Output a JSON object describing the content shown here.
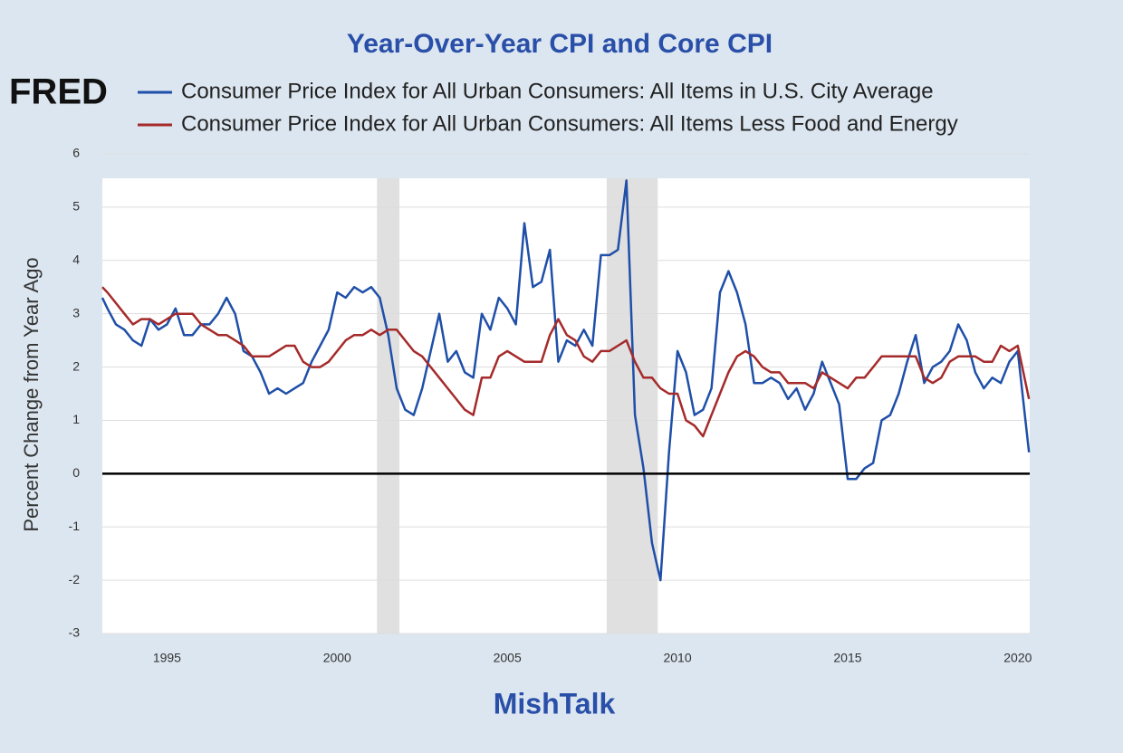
{
  "chart_data": {
    "type": "line",
    "title": "Year-Over-Year CPI and Core CPI",
    "source_logo": "FRED",
    "watermark": "MishTalk",
    "y_label": "Percent Change from Year Ago",
    "x": [
      1993.1,
      1993.25,
      1993.5,
      1993.75,
      1994,
      1994.25,
      1994.5,
      1994.75,
      1995,
      1995.25,
      1995.5,
      1995.75,
      1996,
      1996.25,
      1996.5,
      1996.75,
      1997,
      1997.25,
      1997.5,
      1997.75,
      1998,
      1998.25,
      1998.5,
      1998.75,
      1999,
      1999.25,
      1999.5,
      1999.75,
      2000,
      2000.25,
      2000.5,
      2000.75,
      2001,
      2001.25,
      2001.5,
      2001.75,
      2002,
      2002.25,
      2002.5,
      2002.75,
      2003,
      2003.25,
      2003.5,
      2003.75,
      2004,
      2004.25,
      2004.5,
      2004.75,
      2005,
      2005.25,
      2005.5,
      2005.75,
      2006,
      2006.25,
      2006.5,
      2006.75,
      2007,
      2007.25,
      2007.5,
      2007.75,
      2008,
      2008.25,
      2008.5,
      2008.75,
      2009,
      2009.25,
      2009.5,
      2009.75,
      2010,
      2010.25,
      2010.5,
      2010.75,
      2011,
      2011.25,
      2011.5,
      2011.75,
      2012,
      2012.25,
      2012.5,
      2012.75,
      2013,
      2013.25,
      2013.5,
      2013.75,
      2014,
      2014.25,
      2014.5,
      2014.75,
      2015,
      2015.25,
      2015.5,
      2015.75,
      2016,
      2016.25,
      2016.5,
      2016.75,
      2017,
      2017.25,
      2017.5,
      2017.75,
      2018,
      2018.25,
      2018.5,
      2018.75,
      2019,
      2019.25,
      2019.5,
      2019.75,
      2020,
      2020.33
    ],
    "series": [
      {
        "name": "Consumer Price Index for All Urban Consumers: All Items in U.S. City Average",
        "color": "#1f4fa8",
        "values": [
          3.3,
          3.1,
          2.8,
          2.7,
          2.5,
          2.4,
          2.9,
          2.7,
          2.8,
          3.1,
          2.6,
          2.6,
          2.8,
          2.8,
          3.0,
          3.3,
          3.0,
          2.3,
          2.2,
          1.9,
          1.5,
          1.6,
          1.5,
          1.6,
          1.7,
          2.1,
          2.4,
          2.7,
          3.4,
          3.3,
          3.5,
          3.4,
          3.5,
          3.3,
          2.6,
          1.6,
          1.2,
          1.1,
          1.6,
          2.3,
          3.0,
          2.1,
          2.3,
          1.9,
          1.8,
          3.0,
          2.7,
          3.3,
          3.1,
          2.8,
          4.7,
          3.5,
          3.6,
          4.2,
          2.1,
          2.5,
          2.4,
          2.7,
          2.4,
          4.1,
          4.1,
          4.2,
          5.5,
          1.1,
          0.1,
          -1.3,
          -2.0,
          0.4,
          2.3,
          1.9,
          1.1,
          1.2,
          1.6,
          3.4,
          3.8,
          3.4,
          2.8,
          1.7,
          1.7,
          1.8,
          1.7,
          1.4,
          1.6,
          1.2,
          1.5,
          2.1,
          1.7,
          1.3,
          -0.1,
          -0.1,
          0.1,
          0.2,
          1.0,
          1.1,
          1.5,
          2.1,
          2.6,
          1.7,
          2.0,
          2.1,
          2.3,
          2.8,
          2.5,
          1.9,
          1.6,
          1.8,
          1.7,
          2.1,
          2.3,
          0.4
        ]
      },
      {
        "name": "Consumer Price Index for All Urban Consumers: All Items Less Food and Energy",
        "color": "#a52a2a",
        "values": [
          3.5,
          3.4,
          3.2,
          3.0,
          2.8,
          2.9,
          2.9,
          2.8,
          2.9,
          3.0,
          3.0,
          3.0,
          2.8,
          2.7,
          2.6,
          2.6,
          2.5,
          2.4,
          2.2,
          2.2,
          2.2,
          2.3,
          2.4,
          2.4,
          2.1,
          2.0,
          2.0,
          2.1,
          2.3,
          2.5,
          2.6,
          2.6,
          2.7,
          2.6,
          2.7,
          2.7,
          2.5,
          2.3,
          2.2,
          2.0,
          1.8,
          1.6,
          1.4,
          1.2,
          1.1,
          1.8,
          1.8,
          2.2,
          2.3,
          2.2,
          2.1,
          2.1,
          2.1,
          2.6,
          2.9,
          2.6,
          2.5,
          2.2,
          2.1,
          2.3,
          2.3,
          2.4,
          2.5,
          2.1,
          1.8,
          1.8,
          1.6,
          1.5,
          1.5,
          1.0,
          0.9,
          0.7,
          1.1,
          1.5,
          1.9,
          2.2,
          2.3,
          2.2,
          2.0,
          1.9,
          1.9,
          1.7,
          1.7,
          1.7,
          1.6,
          1.9,
          1.8,
          1.7,
          1.6,
          1.8,
          1.8,
          2.0,
          2.2,
          2.2,
          2.2,
          2.2,
          2.2,
          1.8,
          1.7,
          1.8,
          2.1,
          2.2,
          2.2,
          2.2,
          2.1,
          2.1,
          2.4,
          2.3,
          2.4,
          1.4
        ]
      }
    ],
    "recessions": [
      [
        2001.17,
        2001.83
      ],
      [
        2007.92,
        2009.42
      ]
    ],
    "xlim": [
      1993.1,
      2020.35
    ],
    "xticks": [
      1995,
      2000,
      2005,
      2010,
      2015,
      2020
    ],
    "ylim": [
      -3,
      6
    ],
    "yticks": [
      -3,
      -2,
      -1,
      0,
      1,
      2,
      3,
      4,
      5,
      6
    ],
    "grid": true
  }
}
